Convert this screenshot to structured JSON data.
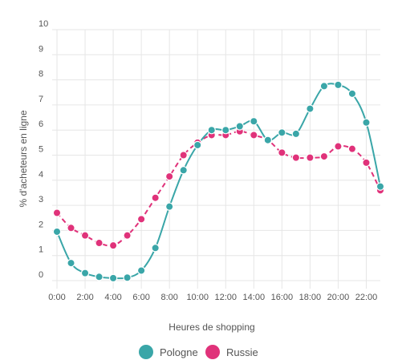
{
  "chart_data": {
    "type": "line",
    "title": "",
    "xlabel": "Heures de shopping",
    "ylabel": "% d'acheteurs en ligne",
    "x": [
      0,
      1,
      2,
      3,
      4,
      5,
      6,
      7,
      8,
      9,
      10,
      11,
      12,
      13,
      14,
      15,
      16,
      17,
      18,
      19,
      20,
      21,
      22,
      23
    ],
    "x_tick_values": [
      0,
      2,
      4,
      6,
      8,
      10,
      12,
      14,
      16,
      18,
      20,
      22
    ],
    "x_tick_labels": [
      "0:00",
      "2:00",
      "4:00",
      "6:00",
      "8:00",
      "10:00",
      "12:00",
      "14:00",
      "16:00",
      "18:00",
      "20:00",
      "22:00"
    ],
    "ylim": [
      0,
      10
    ],
    "y_ticks": [
      "0",
      "1",
      "2",
      "3",
      "4",
      "5",
      "6",
      "7",
      "8",
      "9",
      "10"
    ],
    "grid": true,
    "legend_position": "bottom",
    "series": [
      {
        "name": "Pologne",
        "color": "#3aa6a8",
        "line_style": "solid",
        "values": [
          1.95,
          0.7,
          0.3,
          0.15,
          0.1,
          0.12,
          0.4,
          1.3,
          2.95,
          4.4,
          5.4,
          6.0,
          6.0,
          6.15,
          6.35,
          5.6,
          5.9,
          5.85,
          6.85,
          7.75,
          7.8,
          7.45,
          6.3,
          3.75
        ]
      },
      {
        "name": "Russie",
        "color": "#e0327a",
        "line_style": "dashed",
        "values": [
          2.7,
          2.1,
          1.8,
          1.5,
          1.4,
          1.8,
          2.45,
          3.3,
          4.15,
          5.0,
          5.5,
          5.8,
          5.8,
          5.95,
          5.8,
          5.6,
          5.1,
          4.9,
          4.9,
          4.95,
          5.35,
          5.25,
          4.7,
          3.6
        ]
      }
    ]
  }
}
